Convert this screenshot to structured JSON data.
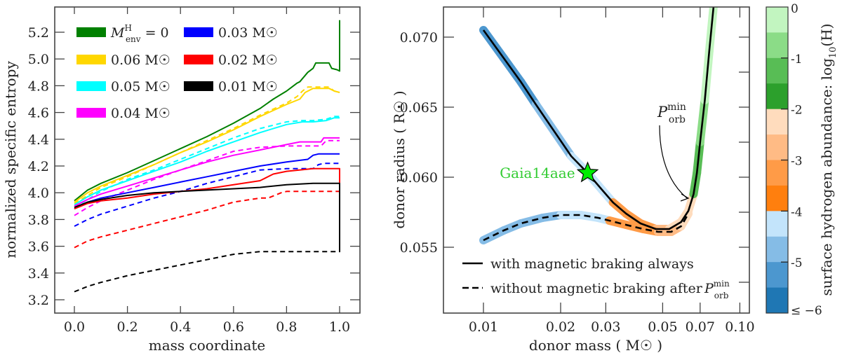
{
  "chart_data": [
    {
      "type": "line",
      "panel": "left",
      "xlabel": "mass coordinate",
      "ylabel": "normalized specific entropy",
      "xlim": [
        -0.12,
        1.14
      ],
      "ylim": [
        3.1,
        5.33
      ],
      "xticks": [
        0.0,
        0.2,
        0.4,
        0.6,
        0.8,
        1.0
      ],
      "xtick_labels": [
        "0.0",
        "0.2",
        "0.4",
        "0.6",
        "0.8",
        "1.0"
      ],
      "yticks": [
        3.2,
        3.4,
        3.6,
        3.8,
        4.0,
        4.2,
        4.4,
        4.6,
        4.8,
        5.0,
        5.2
      ],
      "ytick_labels": [
        "3.2",
        "3.4",
        "3.6",
        "3.8",
        "4.0",
        "4.2",
        "4.4",
        "4.6",
        "4.8",
        "5.0",
        "5.2"
      ],
      "legend_position": "top-left",
      "legend": [
        {
          "label": "M_env^H = 0",
          "label_main": "M",
          "label_sup": "H",
          "label_sub": "env",
          "label_tail": " = 0",
          "color": "#008000"
        },
        {
          "label": "0.06 M☉",
          "color": "#ffd700"
        },
        {
          "label": "0.05 M☉",
          "color": "#00ffff"
        },
        {
          "label": "0.04 M☉",
          "color": "#ff00ff"
        },
        {
          "label": "0.03 M☉",
          "color": "#0000ff"
        },
        {
          "label": "0.02 M☉",
          "color": "#ff0000"
        },
        {
          "label": "0.01 M☉",
          "color": "#000000"
        }
      ],
      "series": [
        {
          "name": "0 solid",
          "color": "#008000",
          "dash": false,
          "x": [
            0.0,
            0.05,
            0.1,
            0.2,
            0.3,
            0.4,
            0.5,
            0.6,
            0.7,
            0.75,
            0.8,
            0.84,
            0.85,
            0.88,
            0.9,
            0.91,
            0.96,
            0.97,
            0.99,
            1.0,
            1.0
          ],
          "y": [
            3.94,
            4.02,
            4.07,
            4.15,
            4.24,
            4.33,
            4.42,
            4.52,
            4.63,
            4.7,
            4.76,
            4.82,
            4.83,
            4.9,
            4.93,
            4.97,
            4.97,
            4.93,
            4.92,
            4.91,
            5.29
          ]
        },
        {
          "name": "0.06 solid",
          "color": "#ffd700",
          "dash": false,
          "x": [
            0.0,
            0.05,
            0.1,
            0.2,
            0.3,
            0.4,
            0.5,
            0.6,
            0.7,
            0.8,
            0.85,
            0.87,
            0.9,
            0.96,
            0.98,
            1.0
          ],
          "y": [
            3.93,
            4.0,
            4.05,
            4.13,
            4.21,
            4.3,
            4.38,
            4.47,
            4.57,
            4.66,
            4.7,
            4.75,
            4.78,
            4.78,
            4.76,
            4.75
          ]
        },
        {
          "name": "0.06 dashed",
          "color": "#ffd700",
          "dash": true,
          "x": [
            0.0,
            0.1,
            0.2,
            0.3,
            0.4,
            0.5,
            0.6,
            0.7,
            0.8,
            0.84,
            0.86,
            0.88,
            0.96,
            0.98,
            1.0
          ],
          "y": [
            3.92,
            4.04,
            4.12,
            4.21,
            4.3,
            4.39,
            4.48,
            4.58,
            4.67,
            4.72,
            4.76,
            4.79,
            4.79,
            4.76,
            4.75
          ]
        },
        {
          "name": "0.05 solid",
          "color": "#00ffff",
          "dash": false,
          "x": [
            0.0,
            0.05,
            0.1,
            0.2,
            0.3,
            0.4,
            0.5,
            0.6,
            0.7,
            0.8,
            0.86,
            0.9,
            0.95,
            0.98,
            1.0
          ],
          "y": [
            3.91,
            3.97,
            4.02,
            4.09,
            4.16,
            4.23,
            4.31,
            4.38,
            4.45,
            4.51,
            4.53,
            4.53,
            4.54,
            4.56,
            4.56
          ]
        },
        {
          "name": "0.05 dashed",
          "color": "#00ffff",
          "dash": true,
          "x": [
            0.0,
            0.1,
            0.2,
            0.3,
            0.4,
            0.5,
            0.6,
            0.7,
            0.8,
            0.86,
            0.9,
            0.95,
            0.98,
            1.0
          ],
          "y": [
            3.89,
            4.01,
            4.1,
            4.17,
            4.25,
            4.33,
            4.41,
            4.48,
            4.53,
            4.54,
            4.54,
            4.55,
            4.57,
            4.57
          ]
        },
        {
          "name": "0.04 solid",
          "color": "#ff00ff",
          "dash": false,
          "x": [
            0.0,
            0.05,
            0.1,
            0.2,
            0.3,
            0.4,
            0.5,
            0.6,
            0.7,
            0.8,
            0.85,
            0.9,
            0.93,
            0.94,
            0.98,
            1.0
          ],
          "y": [
            3.9,
            3.95,
            3.99,
            4.05,
            4.11,
            4.17,
            4.23,
            4.28,
            4.32,
            4.36,
            4.38,
            4.38,
            4.38,
            4.41,
            4.41,
            4.41
          ]
        },
        {
          "name": "0.04 dashed",
          "color": "#ff00ff",
          "dash": true,
          "x": [
            0.0,
            0.05,
            0.1,
            0.2,
            0.3,
            0.4,
            0.5,
            0.6,
            0.7,
            0.8,
            0.9,
            0.93,
            0.95,
            1.0
          ],
          "y": [
            3.83,
            3.89,
            3.94,
            4.02,
            4.1,
            4.17,
            4.24,
            4.31,
            4.34,
            4.35,
            4.35,
            4.35,
            4.39,
            4.39
          ]
        },
        {
          "name": "0.03 solid",
          "color": "#0000ff",
          "dash": false,
          "x": [
            0.0,
            0.05,
            0.1,
            0.2,
            0.3,
            0.4,
            0.5,
            0.6,
            0.7,
            0.8,
            0.88,
            0.9,
            0.92,
            1.0
          ],
          "y": [
            3.88,
            3.93,
            3.96,
            4.0,
            4.04,
            4.08,
            4.12,
            4.16,
            4.2,
            4.23,
            4.25,
            4.28,
            4.29,
            4.29
          ]
        },
        {
          "name": "0.03 dashed",
          "color": "#0000ff",
          "dash": true,
          "x": [
            0.0,
            0.05,
            0.1,
            0.2,
            0.3,
            0.4,
            0.5,
            0.6,
            0.7,
            0.8,
            0.9,
            0.92,
            0.94,
            1.0
          ],
          "y": [
            3.75,
            3.8,
            3.84,
            3.9,
            3.96,
            4.01,
            4.07,
            4.12,
            4.17,
            4.18,
            4.18,
            4.21,
            4.22,
            4.22
          ]
        },
        {
          "name": "0.02 solid",
          "color": "#ff0000",
          "dash": false,
          "x": [
            0.0,
            0.05,
            0.1,
            0.2,
            0.3,
            0.4,
            0.5,
            0.6,
            0.7,
            0.72,
            0.75,
            0.8,
            0.9,
            1.0,
            1.0
          ],
          "y": [
            3.88,
            3.92,
            3.94,
            3.96,
            3.99,
            4.01,
            4.03,
            4.06,
            4.09,
            4.11,
            4.14,
            4.16,
            4.18,
            4.18,
            4.01
          ]
        },
        {
          "name": "0.02 dashed",
          "color": "#ff0000",
          "dash": true,
          "x": [
            0.0,
            0.05,
            0.1,
            0.2,
            0.3,
            0.4,
            0.5,
            0.6,
            0.7,
            0.73,
            0.78,
            0.8,
            0.9,
            1.0
          ],
          "y": [
            3.59,
            3.64,
            3.67,
            3.72,
            3.77,
            3.82,
            3.87,
            3.93,
            3.96,
            3.96,
            4.0,
            4.01,
            4.01,
            4.01
          ]
        },
        {
          "name": "0.01 solid",
          "color": "#000000",
          "dash": false,
          "x": [
            0.0,
            0.05,
            0.1,
            0.2,
            0.3,
            0.4,
            0.5,
            0.6,
            0.7,
            0.8,
            0.9,
            1.0,
            1.0
          ],
          "y": [
            3.89,
            3.93,
            3.95,
            3.98,
            4.0,
            4.01,
            4.02,
            4.03,
            4.04,
            4.06,
            4.07,
            4.07,
            3.56
          ]
        },
        {
          "name": "0.01 dashed",
          "color": "#000000",
          "dash": true,
          "x": [
            0.0,
            0.05,
            0.1,
            0.2,
            0.3,
            0.4,
            0.5,
            0.6,
            0.7,
            0.8,
            0.9,
            1.0,
            1.0
          ],
          "y": [
            3.26,
            3.3,
            3.33,
            3.38,
            3.42,
            3.46,
            3.5,
            3.54,
            3.56,
            3.56,
            3.56,
            3.56,
            4.07
          ]
        }
      ]
    },
    {
      "type": "line",
      "panel": "right",
      "xscale": "log",
      "xlabel": "donor mass ( M☉ )",
      "ylabel": "donor radius ( R☉ )",
      "xlim": [
        0.007,
        0.115
      ],
      "ylim": [
        0.0503,
        0.0722
      ],
      "xticks": [
        0.01,
        0.02,
        0.03,
        0.05,
        0.07,
        0.1
      ],
      "xtick_labels": [
        "0.01",
        "0.02",
        "0.03",
        "0.05",
        "0.07",
        "0.10"
      ],
      "yticks": [
        0.055,
        0.06,
        0.065,
        0.07
      ],
      "ytick_labels": [
        "0.055",
        "0.060",
        "0.065",
        "0.070"
      ],
      "legend_position": "bottom-left",
      "legend": [
        {
          "label": "with magnetic braking always",
          "style": "solid"
        },
        {
          "label": "without magnetic braking after",
          "label_tail_main": "P",
          "label_tail_sup": "min",
          "label_tail_sub": "orb",
          "style": "dashed"
        }
      ],
      "annotations": [
        {
          "text": "Gaia14aae",
          "x": 0.0255,
          "y": 0.0603,
          "color": "#33cc33",
          "marker": "star",
          "marker_color": "#00ee00"
        },
        {
          "text": "P_orb^min",
          "main": "P",
          "sup": "min",
          "sub": "orb",
          "arrow_to_x": 0.063,
          "arrow_to_y": 0.0585
        }
      ],
      "series": [
        {
          "name": "with magnetic braking always",
          "dash": false,
          "points": [
            {
              "x": 0.01,
              "y": 0.0705,
              "logH": -5.5
            },
            {
              "x": 0.012,
              "y": 0.0685,
              "logH": -5.5
            },
            {
              "x": 0.014,
              "y": 0.0668,
              "logH": -5.5
            },
            {
              "x": 0.016,
              "y": 0.0652,
              "logH": -5.0
            },
            {
              "x": 0.019,
              "y": 0.0632,
              "logH": -5.0
            },
            {
              "x": 0.022,
              "y": 0.0615,
              "logH": -4.5
            },
            {
              "x": 0.0255,
              "y": 0.0603,
              "logH": -4.5
            },
            {
              "x": 0.029,
              "y": 0.0591,
              "logH": -4.5
            },
            {
              "x": 0.032,
              "y": 0.0582,
              "logH": -3.5
            },
            {
              "x": 0.036,
              "y": 0.0574,
              "logH": -3.5
            },
            {
              "x": 0.041,
              "y": 0.0567,
              "logH": -3.5
            },
            {
              "x": 0.047,
              "y": 0.0563,
              "logH": -3.0
            },
            {
              "x": 0.053,
              "y": 0.0563,
              "logH": -2.5
            },
            {
              "x": 0.059,
              "y": 0.0568,
              "logH": -2.5
            },
            {
              "x": 0.063,
              "y": 0.0576,
              "logH": -2.5
            },
            {
              "x": 0.066,
              "y": 0.0588,
              "logH": -1.5
            },
            {
              "x": 0.068,
              "y": 0.0603,
              "logH": -1.5
            },
            {
              "x": 0.07,
              "y": 0.0625,
              "logH": -1.0
            },
            {
              "x": 0.073,
              "y": 0.0655,
              "logH": -0.5
            },
            {
              "x": 0.076,
              "y": 0.069,
              "logH": -0.5
            },
            {
              "x": 0.079,
              "y": 0.0722,
              "logH": -0.5
            }
          ]
        },
        {
          "name": "without magnetic braking after P_orb^min",
          "dash": true,
          "points": [
            {
              "x": 0.01,
              "y": 0.0555,
              "logH": -5.0
            },
            {
              "x": 0.012,
              "y": 0.0562,
              "logH": -5.0
            },
            {
              "x": 0.014,
              "y": 0.0567,
              "logH": -5.0
            },
            {
              "x": 0.017,
              "y": 0.0571,
              "logH": -5.0
            },
            {
              "x": 0.02,
              "y": 0.0573,
              "logH": -4.5
            },
            {
              "x": 0.024,
              "y": 0.0573,
              "logH": -4.5
            },
            {
              "x": 0.028,
              "y": 0.0571,
              "logH": -4.5
            },
            {
              "x": 0.031,
              "y": 0.0569,
              "logH": -3.5
            },
            {
              "x": 0.036,
              "y": 0.0566,
              "logH": -3.5
            },
            {
              "x": 0.042,
              "y": 0.0563,
              "logH": -3.5
            },
            {
              "x": 0.048,
              "y": 0.0561,
              "logH": -3.0
            },
            {
              "x": 0.054,
              "y": 0.0561,
              "logH": -3.0
            },
            {
              "x": 0.059,
              "y": 0.0565,
              "logH": -2.5
            },
            {
              "x": 0.063,
              "y": 0.0574,
              "logH": -2.5
            }
          ]
        }
      ]
    },
    {
      "type": "colorbar",
      "label": "surface hydrogen abundance: log10(H)",
      "label_main": "surface hydrogen abundance: log",
      "label_sub": "10",
      "label_tail": "(H)",
      "range": [
        -6,
        0
      ],
      "ticks": [
        0,
        -1,
        -2,
        -3,
        -4,
        -5,
        -6
      ],
      "tick_labels": [
        "0",
        "-1",
        "-2",
        "-3",
        "-4",
        "-5",
        "≤ −6"
      ],
      "bins": [
        {
          "from": -0.5,
          "to": 0.0,
          "color": "#c2f5c0"
        },
        {
          "from": -1.0,
          "to": -0.5,
          "color": "#8bdc87"
        },
        {
          "from": -1.5,
          "to": -1.0,
          "color": "#58bd55"
        },
        {
          "from": -2.0,
          "to": -1.5,
          "color": "#2ca02c"
        },
        {
          "from": -2.5,
          "to": -2.0,
          "color": "#ffdcbd"
        },
        {
          "from": -3.0,
          "to": -2.5,
          "color": "#ffbb85"
        },
        {
          "from": -3.5,
          "to": -3.0,
          "color": "#ff9b47"
        },
        {
          "from": -4.0,
          "to": -3.5,
          "color": "#ff7f0e"
        },
        {
          "from": -4.5,
          "to": -4.0,
          "color": "#c3e4fb"
        },
        {
          "from": -5.0,
          "to": -4.5,
          "color": "#85bce6"
        },
        {
          "from": -5.5,
          "to": -5.0,
          "color": "#4c97cf"
        },
        {
          "from": -6.0,
          "to": -5.5,
          "color": "#1f77b4"
        }
      ]
    }
  ]
}
